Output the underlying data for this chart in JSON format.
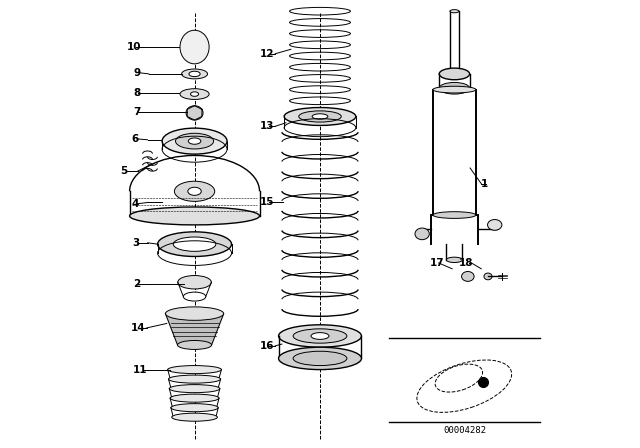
{
  "bg_color": "#ffffff",
  "line_color": "#000000",
  "fig_width": 6.4,
  "fig_height": 4.48,
  "dpi": 100,
  "diagram_code": "00004282"
}
